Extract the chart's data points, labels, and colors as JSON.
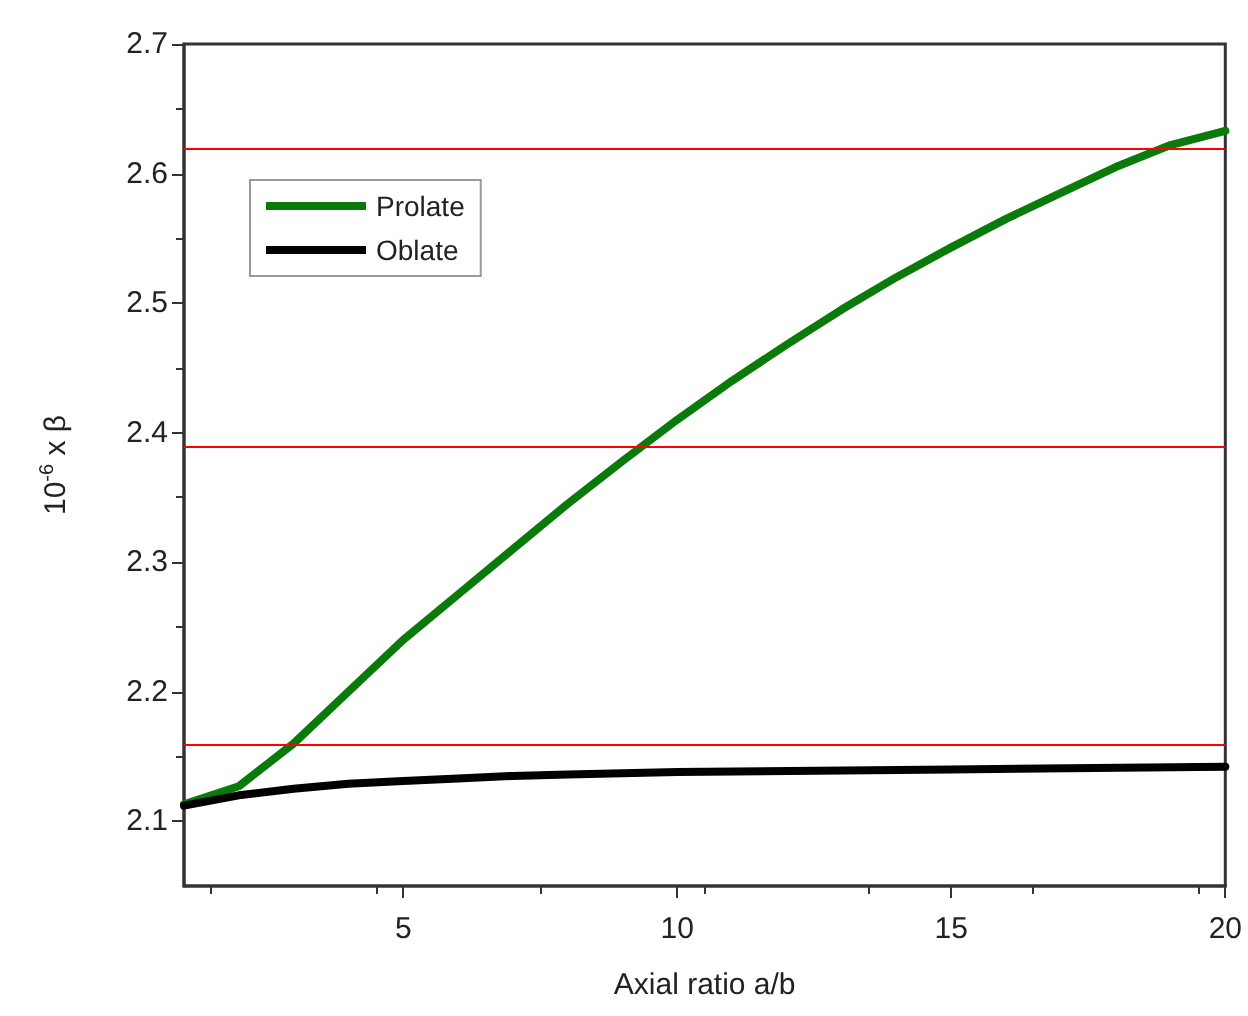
{
  "chart_data": {
    "type": "line",
    "xlabel": "Axial ratio a/b",
    "ylabel": "10$^{-6}$ x β",
    "xlim": [
      1,
      20
    ],
    "xticks": [
      5,
      10,
      15,
      20
    ],
    "ylim": [
      2.05,
      2.7
    ],
    "yticks": [
      2.1,
      2.2,
      2.3,
      2.4,
      2.5,
      2.6,
      2.7
    ],
    "grid": false,
    "legend": "top left",
    "marker": "none",
    "line_style": "solid",
    "series": [
      {
        "name": "Prolate",
        "color": "#0a7a0a",
        "x": [
          1,
          2,
          3,
          4,
          5,
          6,
          7,
          8,
          9,
          10,
          11,
          12,
          13,
          14,
          15,
          16,
          17,
          18,
          19,
          20
        ],
        "values": [
          2.113,
          2.127,
          2.16,
          2.2,
          2.24,
          2.275,
          2.31,
          2.345,
          2.378,
          2.41,
          2.44,
          2.468,
          2.495,
          2.52,
          2.543,
          2.565,
          2.585,
          2.605,
          2.622,
          2.633
        ]
      },
      {
        "name": "Oblate",
        "color": "#000000",
        "x": [
          1,
          2,
          3,
          4,
          5,
          6,
          7,
          8,
          10,
          15,
          20
        ],
        "values": [
          2.112,
          2.12,
          2.125,
          2.129,
          2.131,
          2.133,
          2.135,
          2.136,
          2.138,
          2.14,
          2.142
        ]
      }
    ],
    "ref_lines": [
      {
        "axis": "y",
        "value": 2.62,
        "color": "#ff0000"
      },
      {
        "axis": "y",
        "value": 2.387,
        "color": "#ff0000"
      },
      {
        "axis": "y",
        "value": 2.16,
        "color": "#ff0000"
      }
    ]
  }
}
